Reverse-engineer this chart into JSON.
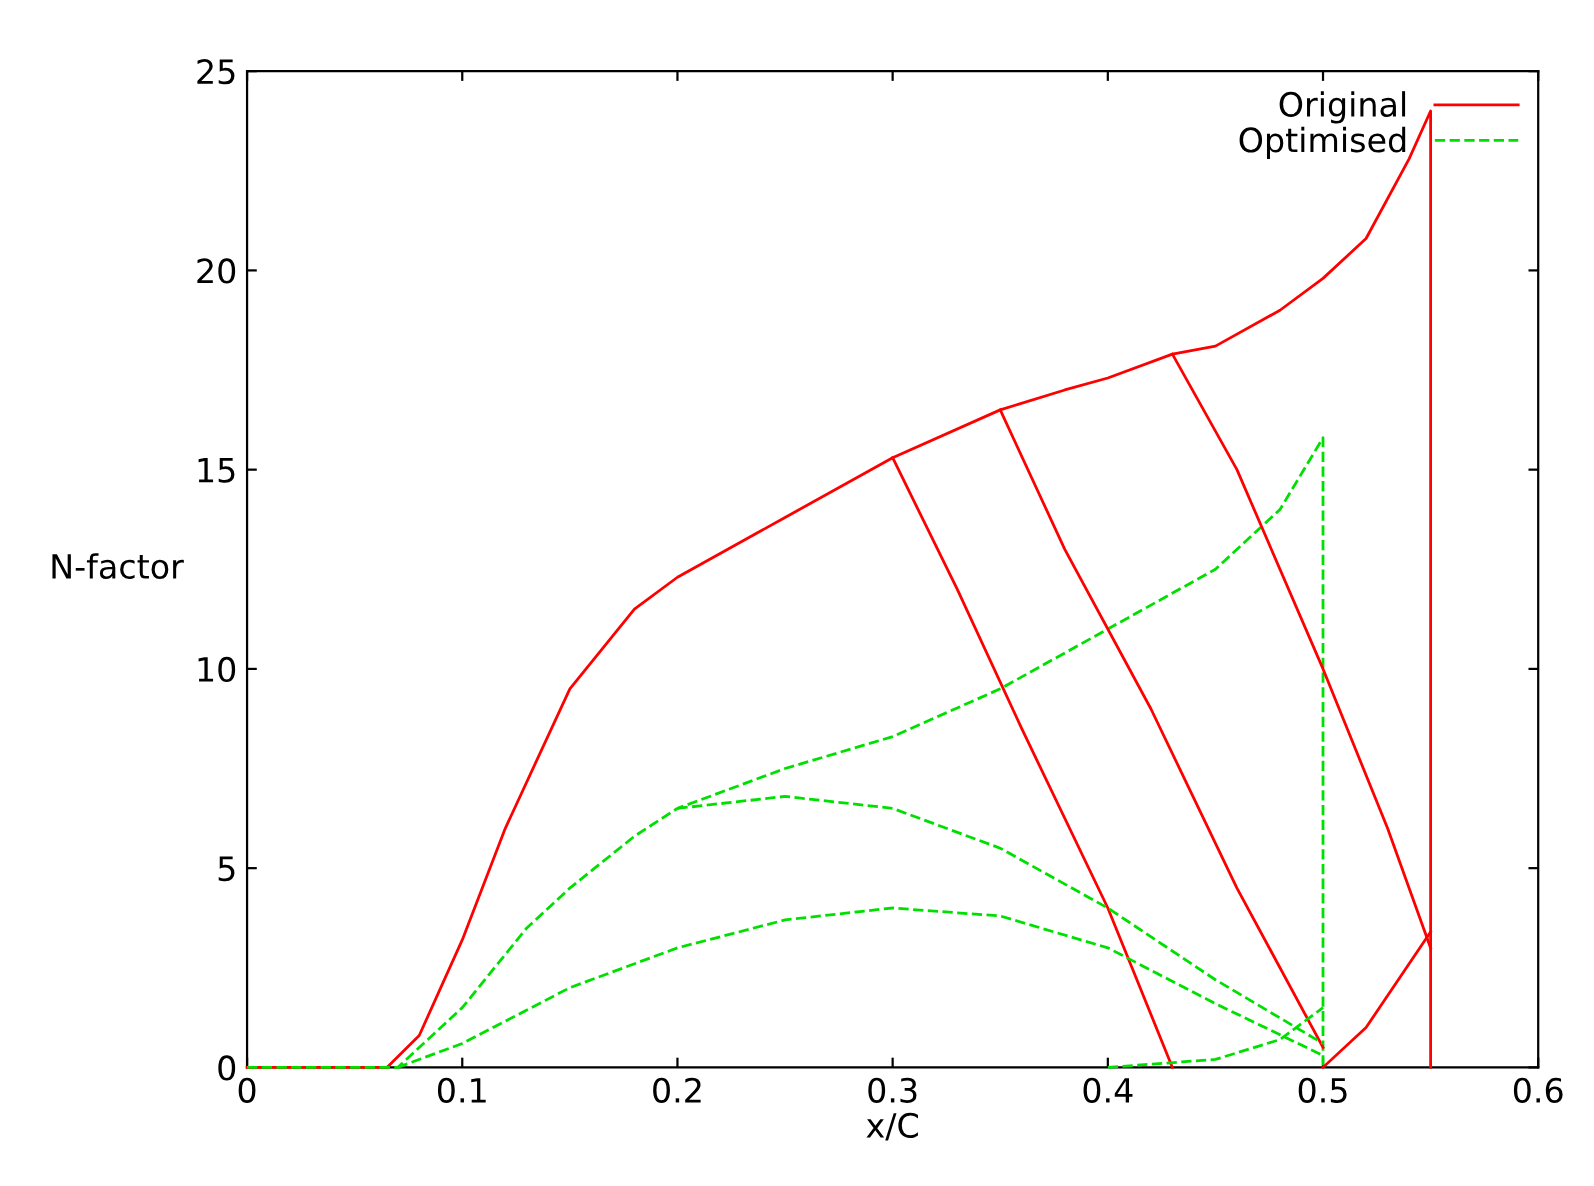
{
  "chart_data": {
    "type": "line",
    "xlabel": "x/C",
    "ylabel": "N-factor",
    "xlim": [
      0,
      0.6
    ],
    "ylim": [
      0,
      25
    ],
    "xticks": [
      0,
      0.1,
      0.2,
      0.3,
      0.4,
      0.5,
      0.6
    ],
    "yticks": [
      0,
      5,
      10,
      15,
      20,
      25
    ],
    "grid": false,
    "legend": "top right",
    "marker": "none",
    "series": [
      {
        "name": "Original",
        "color": "#ff0000",
        "line_style": "solid",
        "x": [
          0,
          0.065,
          0.08,
          0.1,
          0.12,
          0.15,
          0.18,
          0.2,
          0.25,
          0.3,
          0.35,
          0.38,
          0.4,
          0.43,
          0.45,
          0.48,
          0.5,
          0.52,
          0.54,
          0.55,
          0.55
        ],
        "values": [
          0,
          0,
          0.8,
          3.2,
          6,
          9.5,
          11.5,
          12.3,
          13.8,
          15.3,
          16.5,
          17,
          17.3,
          17.9,
          18.1,
          19,
          19.8,
          20.8,
          22.8,
          24,
          0
        ]
      },
      {
        "name": "Optimised",
        "color": "#00e000",
        "line_style": "dashed",
        "x": [
          0,
          0.07,
          0.1,
          0.13,
          0.15,
          0.18,
          0.2,
          0.25,
          0.3,
          0.35,
          0.4,
          0.45,
          0.48,
          0.5,
          0.5
        ],
        "values": [
          0,
          0,
          1.5,
          3.5,
          4.5,
          5.8,
          6.5,
          7.5,
          8.3,
          9.5,
          11,
          12.5,
          14,
          15.8,
          0
        ]
      },
      {
        "color": "#ff0000",
        "line_style": "solid",
        "x": [
          0.3,
          0.33,
          0.36,
          0.4,
          0.43
        ],
        "values": [
          15.3,
          12,
          8.5,
          4,
          0
        ]
      },
      {
        "color": "#ff0000",
        "line_style": "solid",
        "x": [
          0.35,
          0.38,
          0.42,
          0.46,
          0.5
        ],
        "values": [
          16.5,
          13,
          9,
          4.5,
          0.5
        ]
      },
      {
        "color": "#ff0000",
        "line_style": "solid",
        "x": [
          0.43,
          0.46,
          0.5,
          0.53,
          0.55
        ],
        "values": [
          17.9,
          15,
          10,
          6,
          3
        ]
      },
      {
        "color": "#ff0000",
        "line_style": "solid",
        "x": [
          0.5,
          0.52,
          0.55
        ],
        "values": [
          0,
          1,
          3.4
        ]
      },
      {
        "color": "#00e000",
        "line_style": "dashed",
        "x": [
          0.07,
          0.1,
          0.15,
          0.2,
          0.25,
          0.3,
          0.35,
          0.4,
          0.45,
          0.5
        ],
        "values": [
          0,
          0.6,
          2,
          3,
          3.7,
          4,
          3.8,
          3,
          1.6,
          0.3
        ]
      },
      {
        "color": "#00e000",
        "line_style": "dashed",
        "x": [
          0.2,
          0.25,
          0.3,
          0.35,
          0.4,
          0.45,
          0.5
        ],
        "values": [
          6.5,
          6.8,
          6.5,
          5.5,
          4,
          2.2,
          0.6
        ]
      },
      {
        "color": "#00e000",
        "line_style": "dashed",
        "x": [
          0.4,
          0.45,
          0.48,
          0.5
        ],
        "values": [
          0,
          0.2,
          0.7,
          1.5
        ]
      }
    ]
  }
}
